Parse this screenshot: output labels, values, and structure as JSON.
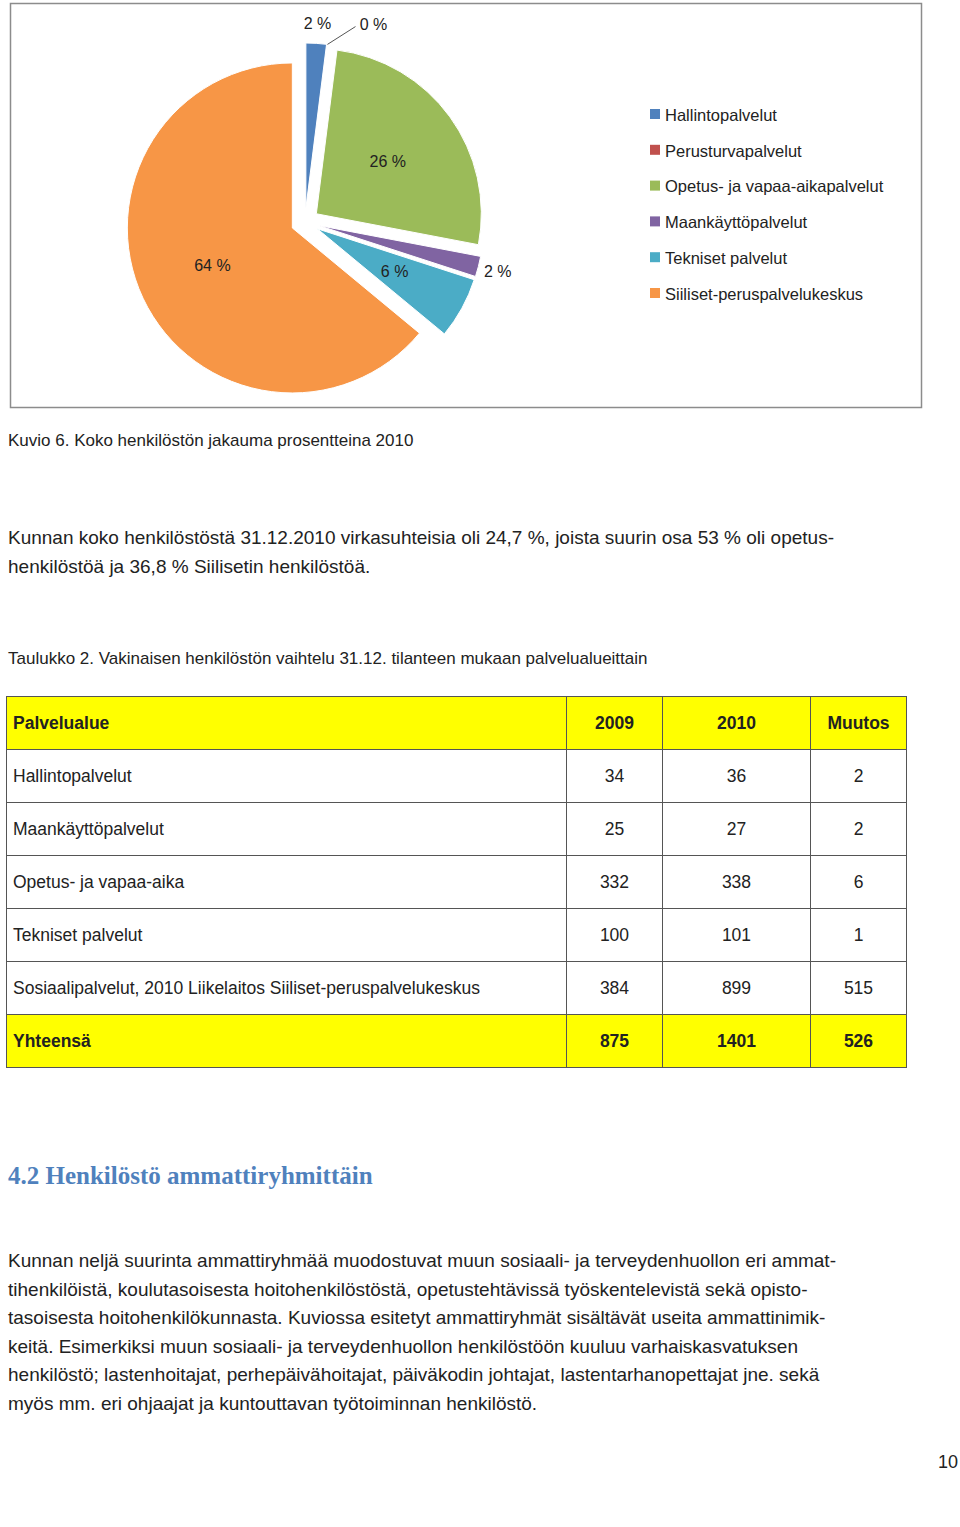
{
  "chart_data": {
    "type": "pie",
    "categories": [
      "Hallintopalvelut",
      "Perusturvapalvelut",
      "Opetus- ja vapaa-aikapalvelut",
      "Maankäyttöpalvelut",
      "Tekniset palvelut",
      "Siiliset-peruspalvelukeskus"
    ],
    "values": [
      2,
      0,
      26,
      2,
      6,
      64
    ],
    "value_labels": [
      "2 %",
      "0 %",
      "26 %",
      "2 %",
      "6 %",
      "64 %"
    ],
    "colors": [
      "#4f81bd",
      "#c0504d",
      "#9bbb59",
      "#8064a2",
      "#4bacc6",
      "#f79646"
    ],
    "data_labels": true,
    "legend": "right"
  },
  "document": {
    "figure_caption": "Kuvio 6. Koko henkilöstön jakauma prosentteina 2010",
    "paragraph1": [
      "Kunnan koko henkilöstöstä 31.12.2010 virkasuhteisia oli 24,7 %, joista suurin osa 53 % oli opetus-",
      "henkilöstöä ja 36,8 % Siilisetin henkilöstöä."
    ],
    "table_caption": "Taulukko 2. Vakinaisen henkilöstön vaihtelu 31.12. tilanteen mukaan palvelualueittain",
    "table": {
      "header": [
        "Palvelualue",
        "2009",
        "2010",
        "Muutos"
      ],
      "rows": [
        [
          "Hallintopalvelut",
          34,
          36,
          2
        ],
        [
          "Maankäyttöpalvelut",
          25,
          27,
          2
        ],
        [
          "Opetus- ja vapaa-aika",
          332,
          338,
          6
        ],
        [
          "Tekniset palvelut",
          100,
          101,
          1
        ],
        [
          "Sosiaalipalvelut, 2010 Liikelaitos Siiliset-peruspalvelukeskus",
          384,
          899,
          515
        ]
      ],
      "total_row": [
        "Yhteensä",
        875,
        1401,
        526
      ]
    },
    "heading": "4.2 Henkilöstö ammattiryhmittäin",
    "paragraph2": [
      "Kunnan neljä suurinta ammattiryhmää muodostuvat muun sosiaali- ja terveydenhuollon eri ammat-",
      "tihenkilöistä, koulutasoisesta hoitohenkilöstöstä, opetustehtävissä työskentelevistä sekä opisto-",
      "tasoisesta hoitohenkilökunnasta. Kuviossa esitetyt ammattiryhmät sisältävät useita ammattinimik-",
      "keitä. Esimerkiksi muun sosiaali- ja terveydenhuollon henkilöstöön kuuluu varhaiskasvatuksen",
      "henkilöstö; lastenhoitajat, perhepäivähoitajat, päiväkodin johtajat, lastentarhanopettajat jne. sekä",
      "myös mm. eri ohjaajat ja kuntouttavan työtoiminnan henkilöstö."
    ],
    "page_number": "10"
  }
}
